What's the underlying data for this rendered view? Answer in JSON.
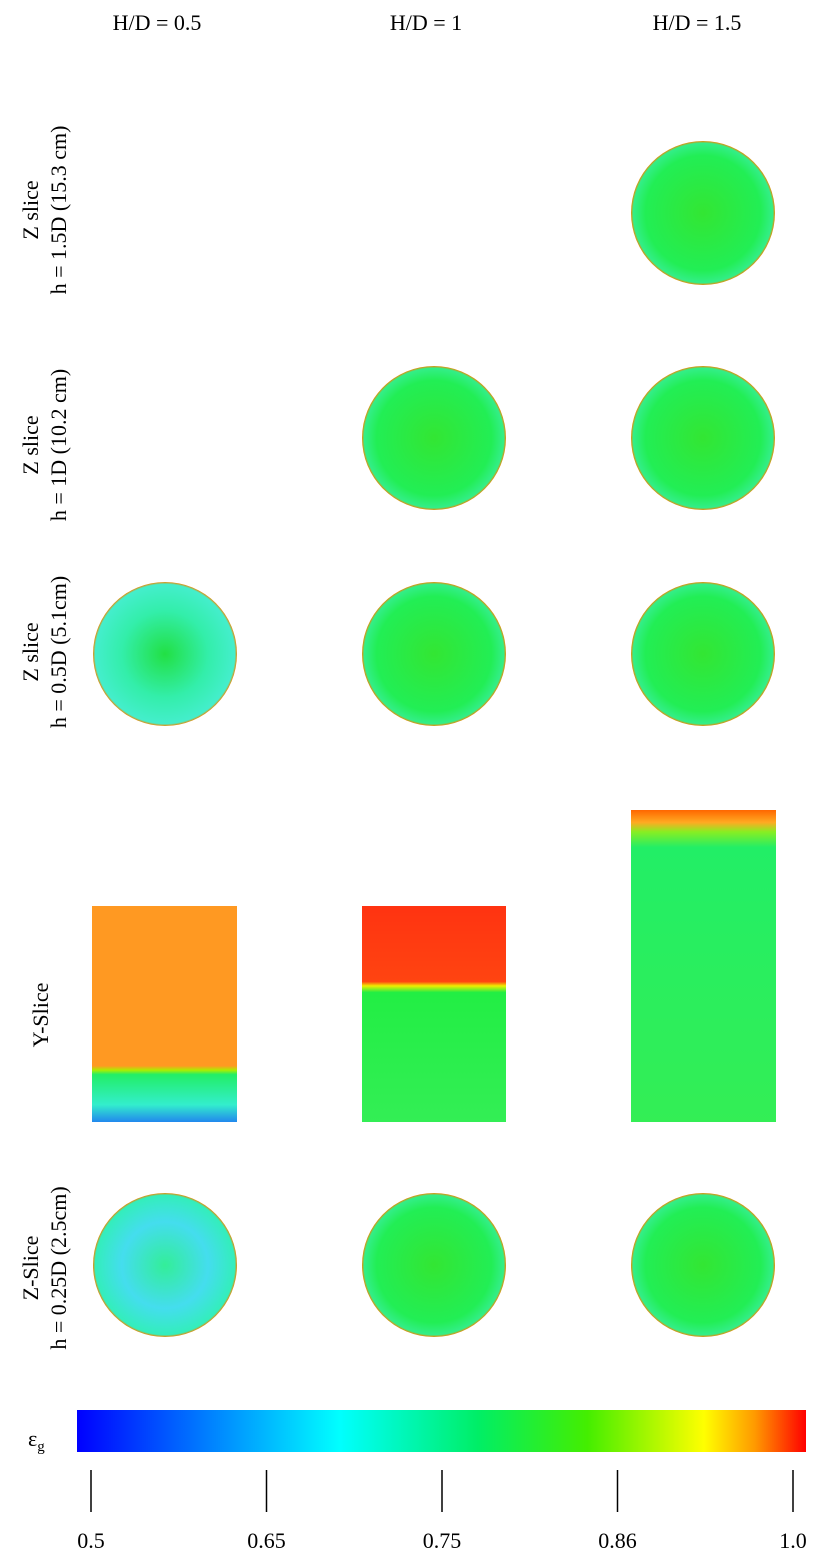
{
  "header": {
    "columns": [
      "H/D = 0.5",
      "H/D = 1",
      "H/D = 1.5"
    ]
  },
  "rows": [
    {
      "lines": [
        "Z slice",
        "h = 1.5D (15.3 cm)"
      ]
    },
    {
      "lines": [
        "Z slice",
        "h = 1D (10.2 cm)"
      ]
    },
    {
      "lines": [
        "Z slice",
        "h = 0.5D (5.1cm)"
      ]
    },
    {
      "lines": [
        "Y-Slice"
      ]
    },
    {
      "lines": [
        "Z-Slice",
        "h = 0.25D (2.5cm)"
      ]
    }
  ],
  "colorbar": {
    "label": "ε",
    "label_sub": "g",
    "ticks": [
      "0.5",
      "0.65",
      "0.75",
      "0.86",
      "1.0"
    ]
  }
}
